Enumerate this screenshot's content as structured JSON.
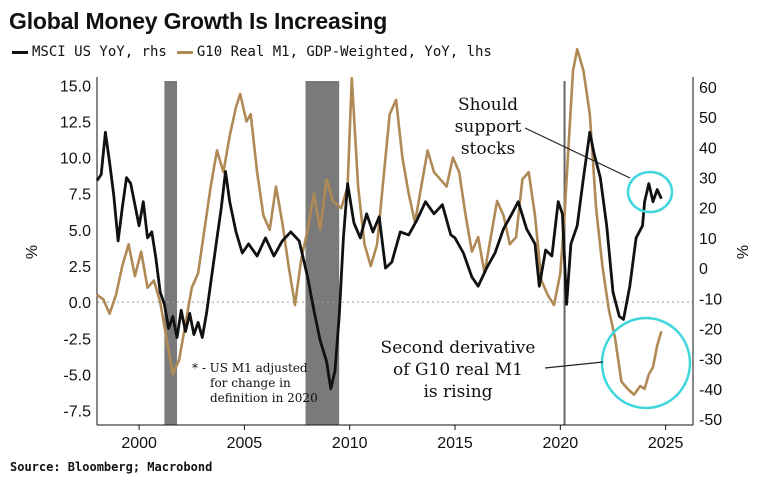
{
  "title": "Global Money Growth Is Increasing",
  "source": "Source: Bloomberg; Macrobond",
  "colors": {
    "msci": "#111111",
    "m1": "#b08a56",
    "recession": "#7a7a7a",
    "highlight": "#3fd6dc",
    "zero_line": "#9a9a9a"
  },
  "chart_data": {
    "type": "line",
    "legend_placement": "top-left",
    "x_ticks": [
      "2000",
      "2005",
      "2010",
      "2015",
      "2020",
      "2025"
    ],
    "x_range": [
      1998.0,
      2026.3
    ],
    "y_left": {
      "ticks": [
        "15.0",
        "12.5",
        "10.0",
        "7.5",
        "5.0",
        "2.5",
        "0.0",
        "-2.5",
        "-5.0",
        "-7.5"
      ],
      "range": [
        -8.5,
        15.3
      ]
    },
    "y_right": {
      "ticks": [
        "60",
        "50",
        "40",
        "30",
        "20",
        "10",
        "0",
        "-10",
        "-20",
        "-30",
        "-40",
        "-50"
      ],
      "range": [
        -52,
        62
      ]
    },
    "recession_bands": [
      [
        2001.2,
        2001.8
      ],
      [
        2007.9,
        2009.5
      ]
    ],
    "event_line": 2020.2,
    "series": [
      {
        "name": "MSCI US YoY, rhs",
        "axis": "right",
        "points": [
          [
            1998.0,
            29
          ],
          [
            1998.2,
            31
          ],
          [
            1998.4,
            45
          ],
          [
            1998.6,
            35
          ],
          [
            1998.8,
            24
          ],
          [
            1999.0,
            9
          ],
          [
            1999.2,
            20
          ],
          [
            1999.4,
            30
          ],
          [
            1999.6,
            28
          ],
          [
            1999.8,
            21
          ],
          [
            2000.0,
            14
          ],
          [
            2000.2,
            22
          ],
          [
            2000.4,
            10
          ],
          [
            2000.6,
            12
          ],
          [
            2000.8,
            3
          ],
          [
            2001.0,
            -8
          ],
          [
            2001.2,
            -12
          ],
          [
            2001.4,
            -20
          ],
          [
            2001.6,
            -16
          ],
          [
            2001.8,
            -23
          ],
          [
            2002.0,
            -14
          ],
          [
            2002.2,
            -21
          ],
          [
            2002.4,
            -15
          ],
          [
            2002.6,
            -22
          ],
          [
            2002.8,
            -18
          ],
          [
            2003.0,
            -23
          ],
          [
            2003.2,
            -15
          ],
          [
            2003.5,
            0
          ],
          [
            2003.7,
            10
          ],
          [
            2003.9,
            20
          ],
          [
            2004.1,
            32
          ],
          [
            2004.3,
            22
          ],
          [
            2004.6,
            12
          ],
          [
            2004.9,
            5
          ],
          [
            2005.2,
            8
          ],
          [
            2005.6,
            4
          ],
          [
            2006.0,
            10
          ],
          [
            2006.4,
            4
          ],
          [
            2006.8,
            9
          ],
          [
            2007.2,
            12
          ],
          [
            2007.6,
            9
          ],
          [
            2008.0,
            -3
          ],
          [
            2008.3,
            -14
          ],
          [
            2008.6,
            -24
          ],
          [
            2008.9,
            -31
          ],
          [
            2009.1,
            -40
          ],
          [
            2009.3,
            -34
          ],
          [
            2009.5,
            -16
          ],
          [
            2009.7,
            10
          ],
          [
            2009.9,
            28
          ],
          [
            2010.2,
            15
          ],
          [
            2010.5,
            10
          ],
          [
            2010.8,
            18
          ],
          [
            2011.1,
            12
          ],
          [
            2011.4,
            17
          ],
          [
            2011.7,
            0
          ],
          [
            2012.0,
            2
          ],
          [
            2012.4,
            12
          ],
          [
            2012.8,
            11
          ],
          [
            2013.2,
            16
          ],
          [
            2013.6,
            22
          ],
          [
            2014.0,
            18
          ],
          [
            2014.4,
            21
          ],
          [
            2014.8,
            11
          ],
          [
            2015.0,
            10
          ],
          [
            2015.4,
            5
          ],
          [
            2015.8,
            -3
          ],
          [
            2016.1,
            -6
          ],
          [
            2016.5,
            0
          ],
          [
            2016.9,
            5
          ],
          [
            2017.3,
            13
          ],
          [
            2017.7,
            18
          ],
          [
            2018.0,
            22
          ],
          [
            2018.4,
            13
          ],
          [
            2018.8,
            8
          ],
          [
            2019.0,
            -6
          ],
          [
            2019.3,
            6
          ],
          [
            2019.6,
            4
          ],
          [
            2019.9,
            22
          ],
          [
            2020.1,
            18
          ],
          [
            2020.3,
            -12
          ],
          [
            2020.5,
            8
          ],
          [
            2020.8,
            14
          ],
          [
            2021.1,
            30
          ],
          [
            2021.4,
            45
          ],
          [
            2021.6,
            38
          ],
          [
            2021.9,
            30
          ],
          [
            2022.2,
            14
          ],
          [
            2022.5,
            -8
          ],
          [
            2022.8,
            -16
          ],
          [
            2023.0,
            -17
          ],
          [
            2023.3,
            -6
          ],
          [
            2023.6,
            10
          ],
          [
            2023.9,
            14
          ],
          [
            2024.0,
            22
          ],
          [
            2024.2,
            28
          ],
          [
            2024.4,
            22
          ],
          [
            2024.6,
            26
          ],
          [
            2024.8,
            23
          ]
        ]
      },
      {
        "name": "G10 Real M1, GDP-Weighted, YoY, lhs",
        "axis": "left",
        "points": [
          [
            1998.0,
            0.5
          ],
          [
            1998.3,
            0.2
          ],
          [
            1998.6,
            -0.8
          ],
          [
            1998.9,
            0.5
          ],
          [
            1999.2,
            2.5
          ],
          [
            1999.5,
            4.0
          ],
          [
            1999.8,
            1.8
          ],
          [
            2000.1,
            3.5
          ],
          [
            2000.4,
            1.0
          ],
          [
            2000.7,
            1.5
          ],
          [
            2001.0,
            0.0
          ],
          [
            2001.3,
            -2.5
          ],
          [
            2001.6,
            -5.0
          ],
          [
            2001.9,
            -4.0
          ],
          [
            2002.2,
            -1.5
          ],
          [
            2002.5,
            1.0
          ],
          [
            2002.8,
            2.0
          ],
          [
            2003.1,
            5.0
          ],
          [
            2003.4,
            8.0
          ],
          [
            2003.7,
            10.5
          ],
          [
            2004.0,
            9.0
          ],
          [
            2004.3,
            11.5
          ],
          [
            2004.6,
            13.5
          ],
          [
            2004.8,
            14.4
          ],
          [
            2005.1,
            12.5
          ],
          [
            2005.3,
            13.0
          ],
          [
            2005.6,
            9.0
          ],
          [
            2005.9,
            6.0
          ],
          [
            2006.2,
            5.0
          ],
          [
            2006.5,
            8.0
          ],
          [
            2006.8,
            5.5
          ],
          [
            2007.1,
            2.5
          ],
          [
            2007.4,
            -0.2
          ],
          [
            2007.7,
            3.0
          ],
          [
            2008.0,
            5.0
          ],
          [
            2008.3,
            7.5
          ],
          [
            2008.6,
            5.0
          ],
          [
            2008.9,
            8.5
          ],
          [
            2009.2,
            7.0
          ],
          [
            2009.6,
            6.5
          ],
          [
            2009.9,
            8.0
          ],
          [
            2010.1,
            15.5
          ],
          [
            2010.4,
            8.0
          ],
          [
            2010.7,
            4.0
          ],
          [
            2011.0,
            2.5
          ],
          [
            2011.3,
            4.0
          ],
          [
            2011.6,
            8.5
          ],
          [
            2011.9,
            13.0
          ],
          [
            2012.2,
            14.0
          ],
          [
            2012.5,
            10.0
          ],
          [
            2012.8,
            7.5
          ],
          [
            2013.1,
            5.5
          ],
          [
            2013.4,
            8.0
          ],
          [
            2013.7,
            10.5
          ],
          [
            2014.0,
            9.0
          ],
          [
            2014.3,
            8.5
          ],
          [
            2014.6,
            8.0
          ],
          [
            2014.9,
            10.0
          ],
          [
            2015.2,
            9.0
          ],
          [
            2015.5,
            6.0
          ],
          [
            2015.8,
            3.5
          ],
          [
            2016.1,
            4.5
          ],
          [
            2016.4,
            2.0
          ],
          [
            2016.7,
            4.5
          ],
          [
            2017.0,
            7.0
          ],
          [
            2017.3,
            6.0
          ],
          [
            2017.6,
            4.0
          ],
          [
            2017.9,
            4.5
          ],
          [
            2018.2,
            8.5
          ],
          [
            2018.5,
            9.0
          ],
          [
            2018.8,
            6.0
          ],
          [
            2019.1,
            1.5
          ],
          [
            2019.4,
            0.5
          ],
          [
            2019.7,
            -0.2
          ],
          [
            2020.0,
            2.0
          ],
          [
            2020.2,
            6.0
          ],
          [
            2020.4,
            11.0
          ],
          [
            2020.6,
            16.0
          ],
          [
            2020.8,
            17.5
          ],
          [
            2021.1,
            16.0
          ],
          [
            2021.4,
            13.0
          ],
          [
            2021.7,
            6.5
          ],
          [
            2022.0,
            2.5
          ],
          [
            2022.3,
            -0.5
          ],
          [
            2022.6,
            -2.5
          ],
          [
            2022.9,
            -5.5
          ],
          [
            2023.2,
            -6.0
          ],
          [
            2023.5,
            -6.4
          ],
          [
            2023.8,
            -5.8
          ],
          [
            2024.0,
            -6.0
          ],
          [
            2024.2,
            -5.0
          ],
          [
            2024.4,
            -4.5
          ],
          [
            2024.6,
            -3.0
          ],
          [
            2024.8,
            -2.0
          ]
        ]
      }
    ],
    "annotations": [
      {
        "lines": [
          "Should",
          "support",
          "stocks"
        ]
      },
      {
        "lines": [
          "Second derivative",
          "of G10 real M1",
          "is rising"
        ]
      },
      {
        "lines": [
          "* - US M1 adjusted",
          "for change in",
          "definition in 2020"
        ]
      }
    ],
    "left_axis_marker": "%",
    "right_axis_marker": "%"
  }
}
